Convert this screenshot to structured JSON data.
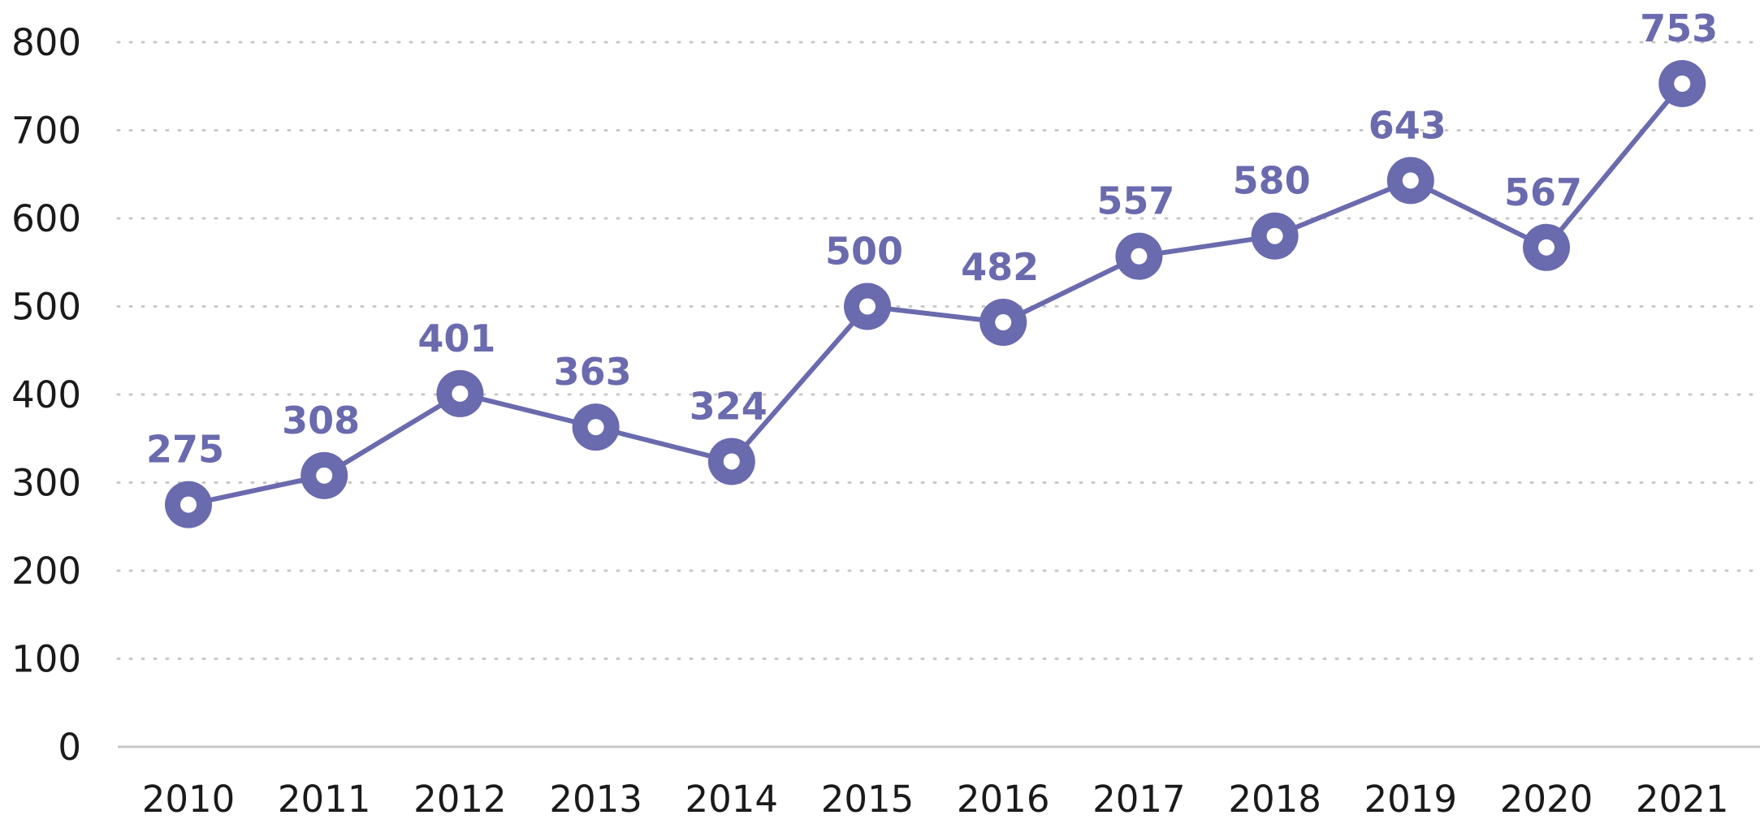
{
  "chart_data": {
    "type": "line",
    "title": "",
    "xlabel": "",
    "ylabel": "",
    "categories": [
      "2010",
      "2011",
      "2012",
      "2013",
      "2014",
      "2015",
      "2016",
      "2017",
      "2018",
      "2019",
      "2020",
      "2021"
    ],
    "series": [
      {
        "values": [
          275,
          308,
          401,
          363,
          324,
          500,
          482,
          557,
          580,
          643,
          567,
          753
        ]
      }
    ],
    "data_labels": [
      "275",
      "308",
      "401",
      "363",
      "324",
      "500",
      "482",
      "557",
      "580",
      "643",
      "567",
      "753"
    ],
    "y_ticks": [
      "0",
      "100",
      "200",
      "300",
      "400",
      "500",
      "600",
      "700",
      "800"
    ],
    "ylim": [
      0,
      800
    ],
    "grid": true,
    "legend": "none",
    "colors": {
      "series": "#6a6aae",
      "marker_center": "#ffffff",
      "grid": "#c8c8c8",
      "text": "#1a1a1a"
    }
  }
}
